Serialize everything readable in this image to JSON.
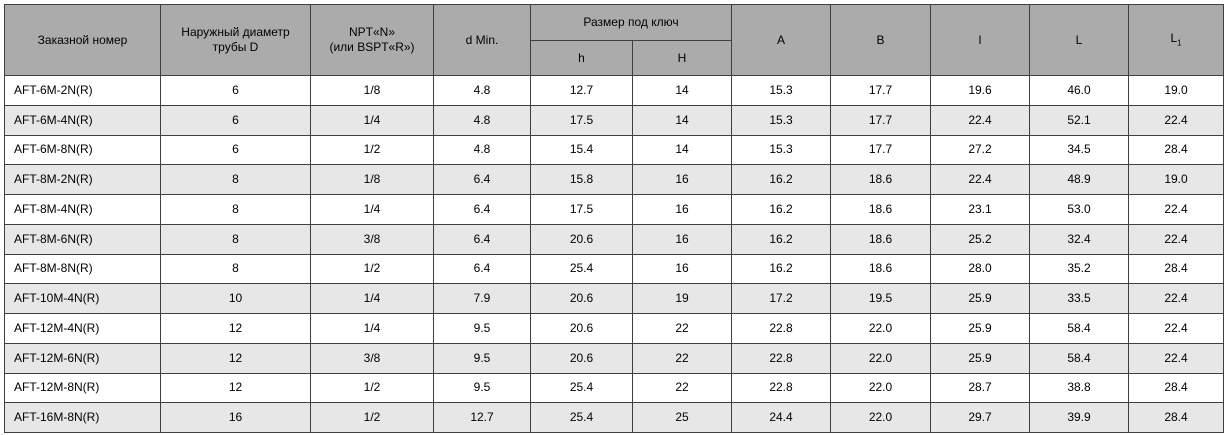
{
  "colors": {
    "header_bg": "#ababab",
    "row_bg": "#ffffff",
    "row_alt_bg": "#e7e7e7",
    "border": "#3f3f3f"
  },
  "table": {
    "header": {
      "order_number": "Заказной номер",
      "outer_diameter_line1": "Наружный диаметр",
      "outer_diameter_line2": "трубы D",
      "thread_line1": "NPT«N»",
      "thread_line2": "(или BSPT«R»)",
      "d_min": "d Min.",
      "wrench_size": "Размер под ключ",
      "h_small": "h",
      "h_cap": "H",
      "a": "A",
      "b": "B",
      "l_small": "l",
      "l_cap": "L",
      "l1_base": "L",
      "l1_sub": "1"
    },
    "rows": [
      [
        "AFT-6M-2N(R)",
        "6",
        "1/8",
        "4.8",
        "12.7",
        "14",
        "15.3",
        "17.7",
        "19.6",
        "46.0",
        "19.0"
      ],
      [
        "AFT-6M-4N(R)",
        "6",
        "1/4",
        "4.8",
        "17.5",
        "14",
        "15.3",
        "17.7",
        "22.4",
        "52.1",
        "22.4"
      ],
      [
        "AFT-6M-8N(R)",
        "6",
        "1/2",
        "4.8",
        "15.4",
        "14",
        "15.3",
        "17.7",
        "27.2",
        "34.5",
        "28.4"
      ],
      [
        "AFT-8M-2N(R)",
        "8",
        "1/8",
        "6.4",
        "15.8",
        "16",
        "16.2",
        "18.6",
        "22.4",
        "48.9",
        "19.0"
      ],
      [
        "AFT-8M-4N(R)",
        "8",
        "1/4",
        "6.4",
        "17.5",
        "16",
        "16.2",
        "18.6",
        "23.1",
        "53.0",
        "22.4"
      ],
      [
        "AFT-8M-6N(R)",
        "8",
        "3/8",
        "6.4",
        "20.6",
        "16",
        "16.2",
        "18.6",
        "25.2",
        "32.4",
        "22.4"
      ],
      [
        "AFT-8M-8N(R)",
        "8",
        "1/2",
        "6.4",
        "25.4",
        "16",
        "16.2",
        "18.6",
        "28.0",
        "35.2",
        "28.4"
      ],
      [
        "AFT-10M-4N(R)",
        "10",
        "1/4",
        "7.9",
        "20.6",
        "19",
        "17.2",
        "19.5",
        "25.9",
        "33.5",
        "22.4"
      ],
      [
        "AFT-12M-4N(R)",
        "12",
        "1/4",
        "9.5",
        "20.6",
        "22",
        "22.8",
        "22.0",
        "25.9",
        "58.4",
        "22.4"
      ],
      [
        "AFT-12M-6N(R)",
        "12",
        "3/8",
        "9.5",
        "20.6",
        "22",
        "22.8",
        "22.0",
        "25.9",
        "58.4",
        "22.4"
      ],
      [
        "AFT-12M-8N(R)",
        "12",
        "1/2",
        "9.5",
        "25.4",
        "22",
        "22.8",
        "22.0",
        "28.7",
        "38.8",
        "28.4"
      ],
      [
        "AFT-16M-8N(R)",
        "16",
        "1/2",
        "12.7",
        "25.4",
        "25",
        "24.4",
        "22.0",
        "29.7",
        "39.9",
        "28.4"
      ]
    ]
  }
}
